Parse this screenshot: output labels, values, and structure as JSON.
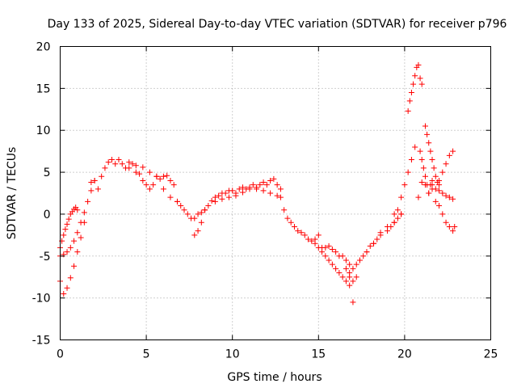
{
  "chart_data": {
    "type": "scatter",
    "title": "Day 133 of 2025, Sidereal Day-to-day VTEC variation (SDTVAR) for receiver p796",
    "xlabel": "GPS time / hours",
    "ylabel": "SDTVAR / TECUs",
    "xlim": [
      0,
      25
    ],
    "ylim": [
      -15,
      20
    ],
    "xticks": [
      0,
      5,
      10,
      15,
      20,
      25
    ],
    "yticks": [
      -15,
      -10,
      -5,
      0,
      5,
      10,
      15,
      20
    ],
    "grid": true,
    "marker": "+",
    "series": [
      {
        "name": "SDTVAR",
        "color": "#ff0000",
        "x": [
          0.0,
          0.1,
          0.2,
          0.3,
          0.4,
          0.5,
          0.6,
          0.7,
          0.8,
          0.9,
          1.0,
          0.0,
          0.2,
          0.4,
          0.6,
          0.8,
          1.0,
          1.2,
          1.4,
          1.6,
          1.8,
          2.0,
          0.0,
          0.2,
          0.4,
          0.6,
          0.8,
          1.0,
          1.2,
          1.4,
          1.8,
          2.0,
          2.2,
          2.4,
          2.6,
          2.8,
          3.0,
          3.2,
          3.4,
          3.6,
          3.8,
          4.0,
          4.2,
          4.4,
          4.6,
          4.8,
          5.0,
          5.2,
          5.4,
          5.6,
          5.8,
          6.0,
          6.2,
          6.4,
          6.6,
          4.0,
          4.4,
          4.8,
          5.2,
          5.6,
          6.0,
          6.4,
          6.8,
          6.8,
          7.0,
          7.2,
          7.4,
          7.6,
          7.8,
          8.0,
          8.2,
          8.4,
          7.8,
          8.0,
          8.2,
          8.4,
          8.6,
          8.8,
          9.0,
          9.2,
          9.4,
          9.6,
          9.8,
          10.0,
          10.2,
          10.4,
          10.6,
          10.8,
          11.0,
          11.2,
          11.4,
          11.6,
          11.8,
          12.0,
          12.2,
          12.4,
          12.6,
          12.8,
          9.0,
          9.4,
          9.8,
          10.2,
          10.6,
          11.0,
          11.4,
          11.8,
          12.2,
          12.6,
          12.8,
          13.0,
          13.2,
          13.4,
          13.6,
          13.8,
          14.0,
          14.2,
          14.4,
          14.6,
          14.8,
          15.0,
          14.8,
          15.0,
          15.2,
          15.4,
          15.6,
          15.8,
          16.0,
          16.2,
          16.4,
          16.6,
          16.8,
          17.0,
          15.2,
          15.4,
          15.6,
          15.8,
          16.0,
          16.2,
          16.4,
          16.6,
          16.8,
          16.6,
          16.8,
          17.0,
          17.2,
          16.8,
          17.0,
          17.2,
          17.4,
          17.6,
          17.8,
          18.0,
          18.2,
          18.4,
          18.6,
          17.4,
          17.8,
          18.2,
          18.6,
          19.0,
          19.4,
          19.8,
          19.0,
          19.2,
          19.4,
          19.6,
          19.8,
          19.4,
          19.6,
          19.8,
          20.0,
          20.2,
          20.4,
          20.6,
          20.8,
          21.0,
          21.2,
          21.4,
          21.6,
          20.2,
          20.3,
          20.4,
          20.5,
          20.6,
          20.7,
          20.8,
          20.9,
          21.0,
          20.9,
          21.0,
          21.1,
          21.2,
          21.3,
          21.4,
          21.5,
          21.6,
          21.2,
          21.3,
          21.4,
          21.5,
          21.6,
          21.7,
          21.8,
          21.9,
          22.0,
          21.6,
          21.8,
          22.0,
          22.2,
          22.4,
          22.6,
          22.8,
          21.8,
          22.0,
          22.2,
          22.4,
          22.6,
          22.8,
          22.9,
          22.0,
          22.2,
          22.4,
          22.6,
          22.8
        ],
        "y": [
          -4.0,
          -3.2,
          -2.5,
          -1.8,
          -1.2,
          -0.6,
          0.0,
          0.3,
          0.6,
          0.8,
          0.5,
          -5.0,
          -4.8,
          -4.5,
          -4.0,
          -3.2,
          -2.2,
          -1.0,
          0.2,
          1.5,
          2.8,
          4.0,
          -8.0,
          -9.5,
          -8.8,
          -7.6,
          -6.2,
          -4.5,
          -2.8,
          -1.0,
          3.8,
          4.0,
          3.0,
          4.5,
          5.5,
          6.2,
          6.5,
          6.0,
          6.5,
          6.0,
          5.5,
          5.5,
          6.0,
          5.0,
          4.8,
          4.0,
          3.5,
          3.0,
          3.5,
          4.5,
          4.2,
          4.5,
          4.6,
          4.0,
          3.5,
          6.2,
          5.8,
          5.6,
          5.0,
          4.5,
          3.0,
          2.0,
          1.5,
          1.5,
          1.0,
          0.5,
          0.0,
          -0.5,
          -2.5,
          -2.0,
          -1.0,
          0.5,
          -0.5,
          0.0,
          0.2,
          0.5,
          1.0,
          1.6,
          2.0,
          2.2,
          2.5,
          2.5,
          2.8,
          2.8,
          2.5,
          3.0,
          3.2,
          3.0,
          3.2,
          3.5,
          3.0,
          3.5,
          3.8,
          3.5,
          4.0,
          4.2,
          3.5,
          3.0,
          1.5,
          1.8,
          2.0,
          2.2,
          2.6,
          3.0,
          3.2,
          2.8,
          2.5,
          2.2,
          2.0,
          0.5,
          -0.5,
          -1.0,
          -1.5,
          -2.0,
          -2.2,
          -2.5,
          -3.0,
          -3.2,
          -3.0,
          -2.5,
          -3.5,
          -4.0,
          -4.5,
          -5.0,
          -5.5,
          -6.0,
          -6.5,
          -7.0,
          -7.5,
          -8.0,
          -8.5,
          -10.5,
          -4.0,
          -4.0,
          -3.8,
          -4.2,
          -4.5,
          -5.0,
          -5.0,
          -5.5,
          -6.0,
          -6.5,
          -7.5,
          -8.0,
          -7.5,
          -7.0,
          -6.5,
          -6.0,
          -5.5,
          -5.0,
          -4.5,
          -3.8,
          -3.5,
          -3.0,
          -2.2,
          -5.5,
          -4.5,
          -3.5,
          -2.5,
          -1.5,
          -1.0,
          0.0,
          -2.0,
          -1.5,
          -1.0,
          -0.5,
          0.0,
          0.0,
          0.5,
          2.0,
          3.5,
          5.0,
          6.5,
          8.0,
          2.0,
          3.8,
          3.5,
          2.5,
          3.0,
          12.3,
          13.5,
          14.5,
          15.5,
          16.5,
          17.5,
          17.8,
          16.2,
          15.5,
          7.5,
          6.5,
          5.5,
          4.5,
          3.5,
          2.5,
          3.5,
          4.0,
          10.5,
          9.5,
          8.5,
          7.5,
          6.5,
          5.5,
          4.5,
          3.8,
          3.5,
          3.5,
          3.0,
          2.8,
          2.5,
          2.2,
          2.0,
          1.8,
          1.5,
          1.0,
          0.0,
          -1.0,
          -1.5,
          -2.0,
          -1.5,
          4.0,
          5.0,
          6.0,
          7.0,
          7.5
        ]
      }
    ]
  }
}
